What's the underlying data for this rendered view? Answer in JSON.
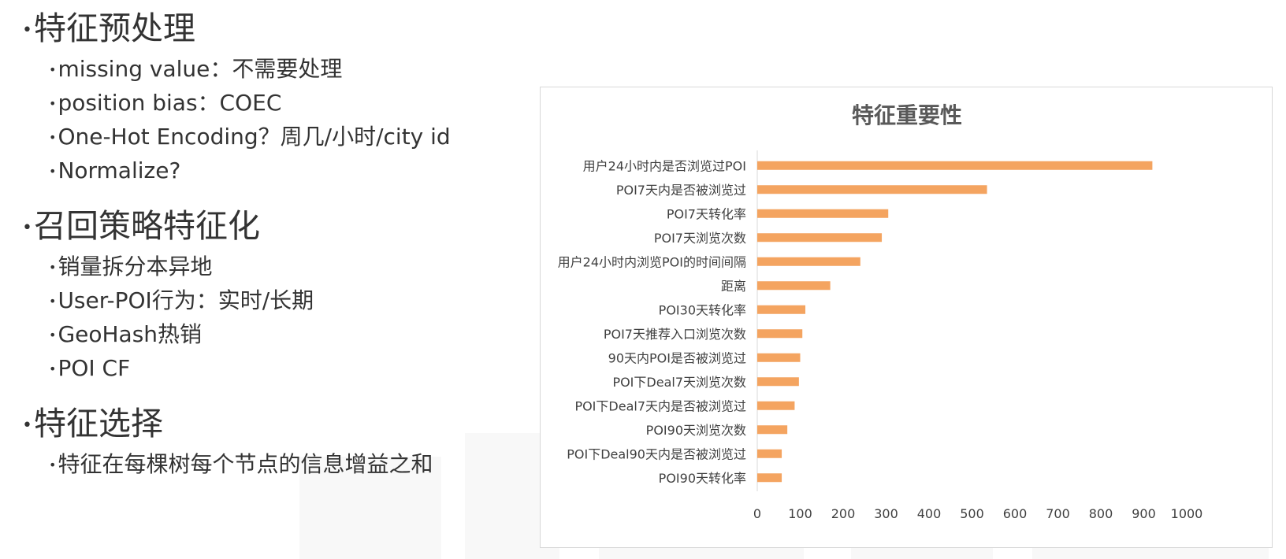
{
  "sections": [
    {
      "title": "特征预处理",
      "items": [
        "missing value：不需要处理",
        "position bias：COEC",
        "One-Hot Encoding？周几/小时/city id",
        "Normalize?"
      ]
    },
    {
      "title": "召回策略特征化",
      "items": [
        "销量拆分本异地",
        "User-POI行为：实时/长期",
        "GeoHash热销",
        "POI CF"
      ]
    },
    {
      "title": "特征选择",
      "items": [
        "特征在每棵树每个节点的信息增益之和"
      ]
    }
  ],
  "bullet_symbol": "•",
  "chart_data": {
    "type": "bar",
    "orientation": "horizontal",
    "title": "特征重要性",
    "xlabel": "",
    "ylabel": "",
    "xlim": [
      0,
      1000
    ],
    "xticks": [
      0,
      100,
      200,
      300,
      400,
      500,
      600,
      700,
      800,
      900,
      1000
    ],
    "grid": false,
    "bar_color": "#F4A460",
    "categories": [
      "用户24小时内是否浏览过POI",
      "POI7天内是否被浏览过",
      "POI7天转化率",
      "POI7天浏览次数",
      "用户24小时内浏览POI的时间间隔",
      "距离",
      "POI30天转化率",
      "POI7天推荐入口浏览次数",
      "90天内POI是否被浏览过",
      "POI下Deal7天浏览次数",
      "POI下Deal7天内是否被浏览过",
      "POI90天浏览次数",
      "POI下Deal90天内是否被浏览过",
      "POI90天转化率"
    ],
    "values": [
      920,
      535,
      305,
      290,
      240,
      170,
      112,
      105,
      100,
      97,
      87,
      70,
      57,
      57
    ]
  }
}
